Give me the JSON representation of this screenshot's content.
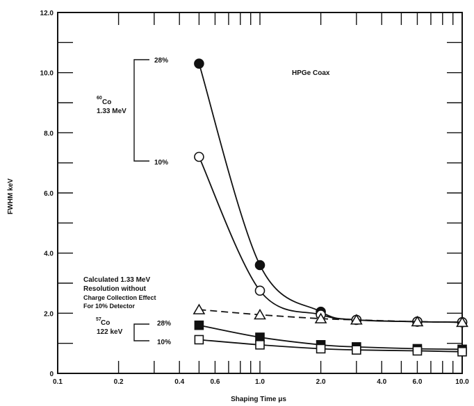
{
  "chart_data": {
    "type": "line",
    "xscale": "log",
    "xlim": [
      0.1,
      10.0
    ],
    "ylim": [
      0,
      12.0
    ],
    "xlabel": "Shaping Time μs",
    "ylabel": "FWHM keV",
    "x_ticks": [
      "0.1",
      "0.2",
      "0.4",
      "0.6",
      "1.0",
      "2.0",
      "4.0",
      "6.0",
      "10.0"
    ],
    "y_ticks": [
      "0",
      "2.0",
      "4.0",
      "6.0",
      "8.0",
      "10.0",
      "12.0"
    ],
    "grid": false,
    "series": [
      {
        "marker": "filled-circle",
        "line": "solid",
        "x": [
          0.5,
          1.0,
          2.0,
          3.0,
          6.0,
          10.0
        ],
        "y": [
          10.3,
          3.6,
          2.05,
          1.78,
          1.72,
          1.7
        ]
      },
      {
        "marker": "open-circle",
        "line": "solid",
        "x": [
          0.5,
          1.0,
          2.0,
          3.0,
          6.0,
          10.0
        ],
        "y": [
          7.2,
          2.75,
          1.95,
          1.78,
          1.72,
          1.7
        ]
      },
      {
        "marker": "open-triangle",
        "line": "dashed",
        "x": [
          0.5,
          1.0,
          2.0,
          3.0,
          6.0,
          10.0
        ],
        "y": [
          2.12,
          1.95,
          1.82,
          1.78,
          1.72,
          1.7
        ]
      },
      {
        "marker": "filled-square",
        "line": "solid",
        "x": [
          0.5,
          1.0,
          2.0,
          3.0,
          6.0,
          10.0
        ],
        "y": [
          1.6,
          1.2,
          0.95,
          0.88,
          0.82,
          0.8
        ]
      },
      {
        "marker": "open-square",
        "line": "solid",
        "x": [
          0.5,
          1.0,
          2.0,
          3.0,
          6.0,
          10.0
        ],
        "y": [
          1.12,
          0.95,
          0.82,
          0.78,
          0.75,
          0.72
        ]
      }
    ],
    "annotations": {
      "detector": "HPGe Coax",
      "co60_sup": "60",
      "co60_rest": "Co",
      "co60_energy": "1.33 MeV",
      "co60_pct_high": "28%",
      "co60_pct_low": "10%",
      "calc_line1": "Calculated 1.33 MeV",
      "calc_line2": "Resolution without",
      "calc_line3": "Charge Collection Effect",
      "calc_line4": "For 10% Detector",
      "co57_sup": "57",
      "co57_rest": "Co",
      "co57_energy": "122 keV",
      "co57_pct_high": "28%",
      "co57_pct_low": "10%"
    }
  },
  "style": {
    "ink": "#111111",
    "background": "#ffffff"
  }
}
